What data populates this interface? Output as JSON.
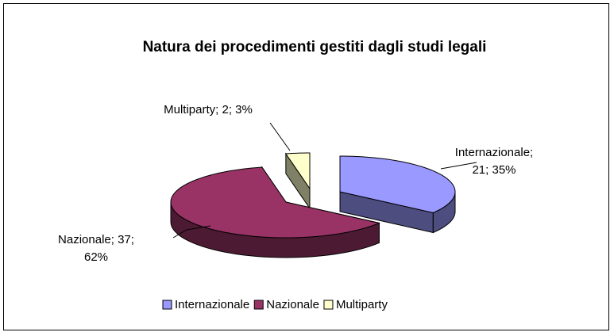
{
  "chart_data": {
    "type": "pie",
    "title": "Natura dei procedimenti gestiti dagli studi legali",
    "categories": [
      "Internazionale",
      "Nazionale",
      "Multiparty"
    ],
    "values": [
      21,
      37,
      2
    ],
    "value_labels": [
      "Internazionale; 21; 35%",
      "Nazionale; 37; 62%",
      "Multiparty; 2; 3%"
    ],
    "colors": [
      "#9999ff",
      "#993366",
      "#ffffcc"
    ],
    "side_colors": [
      "#4d4d80",
      "#4d1a33",
      "#808066"
    ],
    "legend": "bottom",
    "three_d": true
  }
}
